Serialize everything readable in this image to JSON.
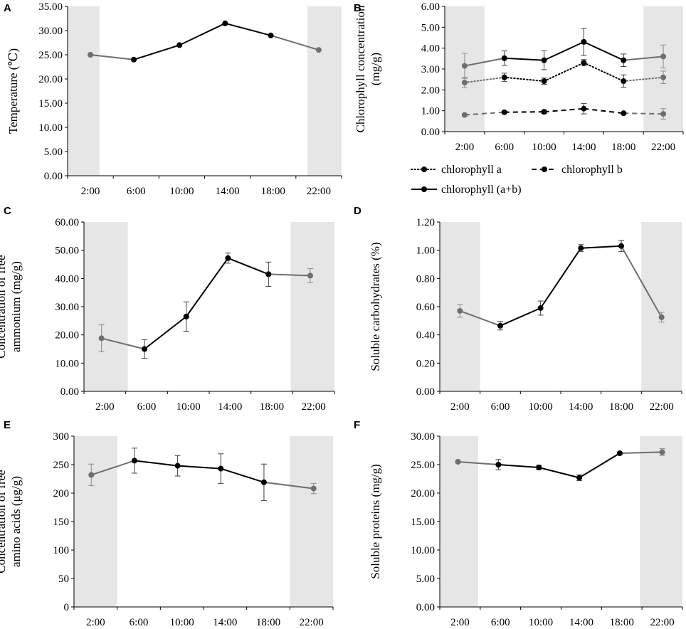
{
  "colors": {
    "dark": "#000000",
    "gray": "#6e6e6e",
    "shade": "#e6e6e6",
    "errbar_dark": "#404040",
    "errbar_gray": "#8c8c8c"
  },
  "chart_data": [
    {
      "id": "A",
      "letter": "A",
      "type": "line",
      "ylabel_lines": [
        "Temperature (℃)"
      ],
      "ylim": [
        0,
        35
      ],
      "yticks": [
        "0.00",
        "5.00",
        "10.00",
        "15.00",
        "20.00",
        "25.00",
        "30.00",
        "35.00"
      ],
      "xticks": [
        "2:00",
        "6:00",
        "10:00",
        "14:00",
        "18:00",
        "22:00"
      ],
      "xlim": [
        0,
        6
      ],
      "shade": [
        [
          0,
          0.7
        ],
        [
          5.25,
          6
        ]
      ],
      "series": [
        {
          "name": "temperature",
          "style": "solid",
          "x": [
            0.5,
            1.45,
            2.45,
            3.45,
            4.45,
            5.5
          ],
          "y": [
            25.0,
            24.0,
            27.0,
            31.5,
            29.0,
            26.0
          ],
          "err": [
            0,
            0,
            0,
            0,
            0,
            0
          ],
          "gray": [
            true,
            false,
            false,
            false,
            false,
            true
          ]
        }
      ]
    },
    {
      "id": "B",
      "letter": "B",
      "type": "line",
      "ylabel_lines": [
        "Chlorophyll concentration",
        "(mg/g)"
      ],
      "ylim": [
        0,
        6
      ],
      "yticks": [
        "0.00",
        "1.00",
        "2.00",
        "3.00",
        "4.00",
        "5.00",
        "6.00"
      ],
      "xticks": [
        "2:00",
        "6:00",
        "10:00",
        "14:00",
        "18:00",
        "22:00"
      ],
      "xlim": [
        0,
        6
      ],
      "shade": [
        [
          0,
          1.0
        ],
        [
          5.0,
          6
        ]
      ],
      "series": [
        {
          "name": "chlorophyll a",
          "style": "dotted",
          "x": [
            0.5,
            1.5,
            2.5,
            3.5,
            4.5,
            5.5
          ],
          "y": [
            2.35,
            2.6,
            2.42,
            3.3,
            2.42,
            2.6
          ],
          "err": [
            0.25,
            0.2,
            0.15,
            0.15,
            0.3,
            0.3
          ],
          "gray": [
            true,
            false,
            false,
            false,
            false,
            true
          ]
        },
        {
          "name": "chlorophyll b",
          "style": "dashed",
          "x": [
            0.5,
            1.5,
            2.5,
            3.5,
            4.5,
            5.5
          ],
          "y": [
            0.8,
            0.93,
            0.95,
            1.1,
            0.88,
            0.85
          ],
          "err": [
            0.05,
            0.05,
            0.08,
            0.25,
            0.05,
            0.25
          ],
          "gray": [
            true,
            false,
            false,
            false,
            false,
            true
          ]
        },
        {
          "name": "chlorophyll (a+b)",
          "style": "solid",
          "x": [
            0.5,
            1.5,
            2.5,
            3.5,
            4.5,
            5.5
          ],
          "y": [
            3.15,
            3.52,
            3.42,
            4.3,
            3.42,
            3.6
          ],
          "err": [
            0.6,
            0.35,
            0.45,
            0.65,
            0.3,
            0.55
          ],
          "gray": [
            true,
            false,
            false,
            false,
            false,
            true
          ]
        }
      ],
      "legend": [
        {
          "label": "chlorophyll a",
          "style": "dotted"
        },
        {
          "label": "chlorophyll b",
          "style": "dashed"
        },
        {
          "label": "chlorophyll (a+b)",
          "style": "solid"
        }
      ]
    },
    {
      "id": "C",
      "letter": "C",
      "type": "line",
      "ylabel_lines": [
        "Concentration of free",
        "ammonium (mg/g)"
      ],
      "ylim": [
        0,
        60
      ],
      "yticks": [
        "0.00",
        "10.00",
        "20.00",
        "30.00",
        "40.00",
        "50.00",
        "60.00"
      ],
      "xticks": [
        "2:00",
        "6:00",
        "10:00",
        "14:00",
        "18:00",
        "22:00"
      ],
      "xlim": [
        0,
        6
      ],
      "shade": [
        [
          0,
          1.05
        ],
        [
          4.95,
          6
        ]
      ],
      "series": [
        {
          "name": "free ammonium",
          "style": "solid",
          "x": [
            0.42,
            1.45,
            2.45,
            3.45,
            4.42,
            5.42
          ],
          "y": [
            18.8,
            15.0,
            26.5,
            47.2,
            41.5,
            41.0
          ],
          "err": [
            4.8,
            3.3,
            5.2,
            1.8,
            4.3,
            2.5
          ],
          "gray": [
            true,
            false,
            false,
            false,
            false,
            true
          ]
        }
      ]
    },
    {
      "id": "D",
      "letter": "D",
      "type": "line",
      "ylabel_lines": [
        "Soluble carbohydrates (%)"
      ],
      "ylim": [
        0,
        1.2
      ],
      "yticks": [
        "0.00",
        "0.20",
        "0.40",
        "0.60",
        "0.80",
        "1.00",
        "1.20"
      ],
      "xticks": [
        "2:00",
        "6:00",
        "10:00",
        "14:00",
        "18:00",
        "22:00"
      ],
      "xlim": [
        0,
        6
      ],
      "shade": [
        [
          0,
          1.0
        ],
        [
          5.0,
          6
        ]
      ],
      "series": [
        {
          "name": "soluble carbohydrates",
          "style": "solid",
          "x": [
            0.5,
            1.5,
            2.5,
            3.5,
            4.5,
            5.5
          ],
          "y": [
            0.57,
            0.465,
            0.59,
            1.015,
            1.03,
            0.525
          ],
          "err": [
            0.045,
            0.03,
            0.05,
            0.025,
            0.04,
            0.035
          ],
          "gray": [
            true,
            false,
            false,
            false,
            false,
            true
          ]
        }
      ]
    },
    {
      "id": "E",
      "letter": "E",
      "type": "line",
      "ylabel_lines": [
        "Concentration of free",
        "amino acids (μg/g)"
      ],
      "ylim": [
        0,
        300
      ],
      "yticks": [
        "0",
        "50",
        "100",
        "150",
        "200",
        "250",
        "300"
      ],
      "xticks": [
        "2:00",
        "6:00",
        "10:00",
        "14:00",
        "18:00",
        "22:00"
      ],
      "xlim": [
        0,
        6
      ],
      "shade": [
        [
          0,
          1.0
        ],
        [
          5.0,
          6
        ]
      ],
      "series": [
        {
          "name": "free amino acids",
          "style": "solid",
          "x": [
            0.4,
            1.4,
            2.4,
            3.4,
            4.4,
            5.55
          ],
          "y": [
            232,
            257,
            248,
            243,
            219,
            208
          ],
          "err": [
            19,
            22,
            18,
            26,
            32,
            9
          ],
          "gray": [
            true,
            false,
            false,
            false,
            false,
            true
          ]
        }
      ]
    },
    {
      "id": "F",
      "letter": "F",
      "type": "line",
      "ylabel_lines": [
        "Soluble proteins (mg/g)"
      ],
      "ylim": [
        0,
        30
      ],
      "yticks": [
        "0.00",
        "5.00",
        "10.00",
        "15.00",
        "20.00",
        "25.00",
        "30.00"
      ],
      "xticks": [
        "2:00",
        "6:00",
        "10:00",
        "14:00",
        "18:00",
        "22:00"
      ],
      "xlim": [
        0,
        6
      ],
      "shade": [
        [
          0,
          0.95
        ],
        [
          4.95,
          6
        ]
      ],
      "series": [
        {
          "name": "soluble proteins",
          "style": "solid",
          "x": [
            0.45,
            1.45,
            2.45,
            3.45,
            4.45,
            5.5
          ],
          "y": [
            25.5,
            25.0,
            24.5,
            22.7,
            27.0,
            27.2
          ],
          "err": [
            0.2,
            0.9,
            0.4,
            0.5,
            0.2,
            0.6
          ],
          "gray": [
            true,
            false,
            false,
            false,
            false,
            true
          ]
        }
      ]
    }
  ]
}
